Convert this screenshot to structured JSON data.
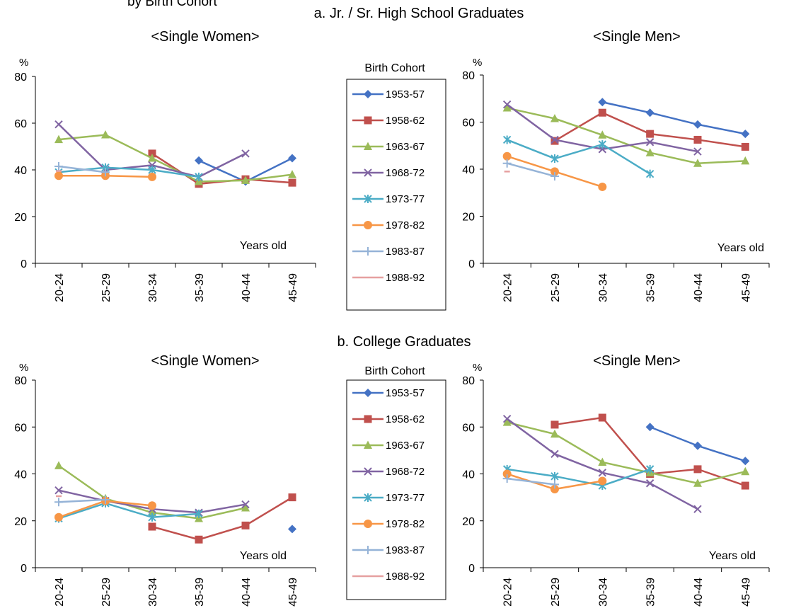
{
  "top_title_fragment": "by Birth Cohort",
  "section_a_title": "a. Jr. / Sr. High School Graduates",
  "section_b_title": "b. College Graduates",
  "percent_unit": "%",
  "years_old_label": "Years old",
  "legend_title": "Birth Cohort",
  "categories": [
    "20-24",
    "25-29",
    "30-34",
    "35-39",
    "40-44",
    "45-49"
  ],
  "yticks": [
    "0",
    "20",
    "40",
    "60",
    "80"
  ],
  "cohorts": [
    {
      "name": "1953-57",
      "color": "#4472C4",
      "marker": "diamond"
    },
    {
      "name": "1958-62",
      "color": "#C0504D",
      "marker": "square"
    },
    {
      "name": "1963-67",
      "color": "#9BBB59",
      "marker": "triangle"
    },
    {
      "name": "1968-72",
      "color": "#8064A2",
      "marker": "x"
    },
    {
      "name": "1973-77",
      "color": "#4BACC6",
      "marker": "star"
    },
    {
      "name": "1978-82",
      "color": "#F79646",
      "marker": "circle"
    },
    {
      "name": "1983-87",
      "color": "#95B3D7",
      "marker": "plus"
    },
    {
      "name": "1988-92",
      "color": "#E6A0A0",
      "marker": "dash"
    }
  ],
  "chart_data": [
    {
      "type": "line",
      "section": "a. Jr. / Sr. High School Graduates",
      "title": "<Single Women>",
      "categories": [
        "20-24",
        "25-29",
        "30-34",
        "35-39",
        "40-44",
        "45-49"
      ],
      "ylim": [
        0,
        80
      ],
      "ylabel": "%",
      "xlabel": "Years old",
      "series": [
        {
          "name": "1953-57",
          "values": [
            null,
            null,
            null,
            44,
            35,
            45
          ]
        },
        {
          "name": "1958-62",
          "values": [
            null,
            null,
            47,
            34,
            36,
            34.5
          ]
        },
        {
          "name": "1963-67",
          "values": [
            53,
            55,
            45,
            35,
            35.5,
            38
          ]
        },
        {
          "name": "1968-72",
          "values": [
            59.5,
            40,
            42,
            37,
            47,
            null
          ]
        },
        {
          "name": "1973-77",
          "values": [
            39,
            41,
            40,
            37,
            null,
            null
          ]
        },
        {
          "name": "1978-82",
          "values": [
            37.5,
            37.5,
            37,
            null,
            null,
            null
          ]
        },
        {
          "name": "1983-87",
          "values": [
            41.5,
            39,
            null,
            null,
            null,
            null
          ]
        },
        {
          "name": "1988-92",
          "values": [
            39.5,
            null,
            null,
            null,
            null,
            null
          ]
        }
      ]
    },
    {
      "type": "line",
      "section": "a. Jr. / Sr. High School Graduates",
      "title": "<Single Men>",
      "categories": [
        "20-24",
        "25-29",
        "30-34",
        "35-39",
        "40-44",
        "45-49"
      ],
      "ylim": [
        0,
        80
      ],
      "ylabel": "%",
      "xlabel": "Years old",
      "series": [
        {
          "name": "1953-57",
          "values": [
            null,
            null,
            68.5,
            64,
            59,
            55
          ]
        },
        {
          "name": "1958-62",
          "values": [
            null,
            52,
            64,
            55,
            52.5,
            49.5
          ]
        },
        {
          "name": "1963-67",
          "values": [
            66,
            61.5,
            54.5,
            47,
            42.5,
            43.5
          ]
        },
        {
          "name": "1968-72",
          "values": [
            67.5,
            52.5,
            48.5,
            51.5,
            47.5,
            null
          ]
        },
        {
          "name": "1973-77",
          "values": [
            52.5,
            44.5,
            50.5,
            38,
            null,
            null
          ]
        },
        {
          "name": "1978-82",
          "values": [
            45.5,
            39,
            32.5,
            null,
            null,
            null
          ]
        },
        {
          "name": "1983-87",
          "values": [
            42.5,
            37,
            null,
            null,
            null,
            null
          ]
        },
        {
          "name": "1988-92",
          "values": [
            39,
            null,
            null,
            null,
            null,
            null
          ]
        }
      ]
    },
    {
      "type": "line",
      "section": "b. College Graduates",
      "title": "<Single Women>",
      "categories": [
        "20-24",
        "25-29",
        "30-34",
        "35-39",
        "40-44",
        "45-49"
      ],
      "ylim": [
        0,
        80
      ],
      "ylabel": "%",
      "xlabel": "Years old",
      "series": [
        {
          "name": "1953-57",
          "values": [
            null,
            null,
            null,
            null,
            null,
            16.5
          ]
        },
        {
          "name": "1958-62",
          "values": [
            null,
            null,
            17.5,
            12,
            18,
            30
          ]
        },
        {
          "name": "1963-67",
          "values": [
            43.5,
            29.5,
            23.5,
            21,
            25.5,
            null
          ]
        },
        {
          "name": "1968-72",
          "values": [
            33,
            28.5,
            25,
            23.5,
            27,
            null
          ]
        },
        {
          "name": "1973-77",
          "values": [
            21,
            27.5,
            21.5,
            23,
            null,
            null
          ]
        },
        {
          "name": "1978-82",
          "values": [
            21.5,
            28.5,
            26.5,
            null,
            null,
            null
          ]
        },
        {
          "name": "1983-87",
          "values": [
            28,
            29,
            null,
            null,
            null,
            null
          ]
        },
        {
          "name": "1988-92",
          "values": [
            30.5,
            null,
            null,
            null,
            null,
            null
          ]
        }
      ]
    },
    {
      "type": "line",
      "section": "b. College Graduates",
      "title": "<Single Men>",
      "categories": [
        "20-24",
        "25-29",
        "30-34",
        "35-39",
        "40-44",
        "45-49"
      ],
      "ylim": [
        0,
        80
      ],
      "ylabel": "%",
      "xlabel": "Years old",
      "series": [
        {
          "name": "1953-57",
          "values": [
            null,
            null,
            null,
            60,
            52,
            45.5
          ]
        },
        {
          "name": "1958-62",
          "values": [
            null,
            61,
            64,
            40,
            42,
            35
          ]
        },
        {
          "name": "1963-67",
          "values": [
            62,
            57,
            45,
            40.5,
            36,
            41
          ]
        },
        {
          "name": "1968-72",
          "values": [
            63.5,
            48.5,
            40.5,
            36,
            25,
            null
          ]
        },
        {
          "name": "1973-77",
          "values": [
            42,
            39,
            35,
            42,
            null,
            null
          ]
        },
        {
          "name": "1978-82",
          "values": [
            40,
            33.5,
            37,
            null,
            null,
            null
          ]
        },
        {
          "name": "1983-87",
          "values": [
            38,
            35.5,
            null,
            null,
            null,
            null
          ]
        }
      ]
    }
  ]
}
